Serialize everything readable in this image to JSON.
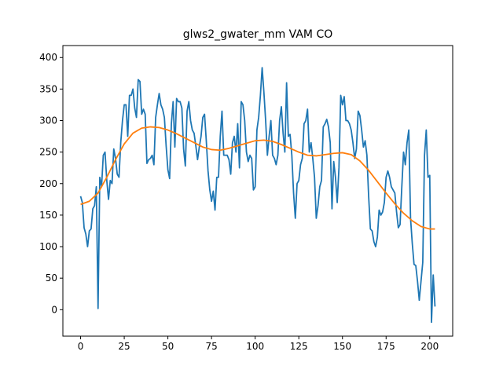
{
  "chart_data": {
    "type": "line",
    "title": "glws2_gwater_mm VAM CO",
    "xlim": [
      -10.15,
      213.15
    ],
    "ylim": [
      -42,
      419
    ],
    "xticks": [
      0,
      25,
      50,
      75,
      100,
      125,
      150,
      175,
      200
    ],
    "yticks": [
      0,
      50,
      100,
      150,
      200,
      250,
      300,
      350,
      400
    ],
    "grid": false,
    "series": [
      {
        "color": "#1f77b4",
        "x": [
          0,
          1,
          2,
          3,
          4,
          5,
          6,
          7,
          8,
          9,
          10,
          11,
          12,
          13,
          14,
          15,
          16,
          17,
          18,
          19,
          20,
          21,
          22,
          23,
          24,
          25,
          26,
          27,
          28,
          29,
          30,
          31,
          32,
          33,
          34,
          35,
          36,
          37,
          38,
          39,
          40,
          41,
          42,
          43,
          44,
          45,
          46,
          47,
          48,
          49,
          50,
          51,
          52,
          53,
          54,
          55,
          56,
          57,
          58,
          59,
          60,
          61,
          62,
          63,
          64,
          65,
          66,
          67,
          68,
          69,
          70,
          71,
          72,
          73,
          74,
          75,
          76,
          77,
          78,
          79,
          80,
          81,
          82,
          83,
          84,
          85,
          86,
          87,
          88,
          89,
          90,
          91,
          92,
          93,
          94,
          95,
          96,
          97,
          98,
          99,
          100,
          101,
          102,
          103,
          104,
          105,
          106,
          107,
          108,
          109,
          110,
          111,
          112,
          113,
          114,
          115,
          116,
          117,
          118,
          119,
          120,
          121,
          122,
          123,
          124,
          125,
          126,
          127,
          128,
          129,
          130,
          131,
          132,
          133,
          134,
          135,
          136,
          137,
          138,
          139,
          140,
          141,
          142,
          143,
          144,
          145,
          146,
          147,
          148,
          149,
          150,
          151,
          152,
          153,
          154,
          155,
          156,
          157,
          158,
          159,
          160,
          161,
          162,
          163,
          164,
          165,
          166,
          167,
          168,
          169,
          170,
          171,
          172,
          173,
          174,
          175,
          176,
          177,
          178,
          179,
          180,
          181,
          182,
          183,
          184,
          185,
          186,
          187,
          188,
          189,
          190,
          191,
          192,
          193,
          194,
          195,
          196,
          197,
          198,
          199,
          200,
          201,
          202,
          203
        ],
        "values": [
          180,
          170,
          130,
          120,
          100,
          125,
          128,
          160,
          165,
          195,
          2,
          210,
          195,
          245,
          250,
          205,
          175,
          205,
          200,
          255,
          240,
          215,
          210,
          265,
          300,
          325,
          325,
          275,
          340,
          340,
          350,
          320,
          305,
          365,
          362,
          310,
          318,
          310,
          232,
          238,
          240,
          245,
          230,
          305,
          325,
          343,
          325,
          318,
          305,
          260,
          222,
          208,
          295,
          330,
          258,
          335,
          330,
          330,
          320,
          255,
          228,
          315,
          330,
          300,
          285,
          280,
          260,
          238,
          258,
          275,
          305,
          310,
          268,
          220,
          190,
          172,
          188,
          158,
          210,
          210,
          275,
          315,
          245,
          245,
          245,
          238,
          215,
          265,
          275,
          250,
          295,
          225,
          330,
          325,
          300,
          250,
          235,
          245,
          240,
          190,
          195,
          285,
          305,
          340,
          384,
          345,
          300,
          245,
          275,
          300,
          245,
          240,
          230,
          245,
          300,
          322,
          280,
          250,
          360,
          275,
          278,
          245,
          185,
          145,
          200,
          205,
          230,
          240,
          295,
          300,
          318,
          250,
          265,
          240,
          210,
          145,
          165,
          195,
          205,
          290,
          295,
          302,
          290,
          265,
          160,
          235,
          210,
          170,
          225,
          340,
          325,
          338,
          300,
          300,
          295,
          285,
          265,
          240,
          255,
          315,
          308,
          285,
          258,
          268,
          245,
          180,
          128,
          125,
          108,
          100,
          115,
          158,
          150,
          155,
          170,
          210,
          220,
          210,
          195,
          190,
          185,
          155,
          130,
          135,
          195,
          250,
          230,
          265,
          285,
          145,
          105,
          72,
          70,
          45,
          15,
          45,
          75,
          245,
          285,
          210,
          213,
          -20,
          55,
          5
        ]
      },
      {
        "color": "#ff7f0e",
        "x": [
          0,
          5,
          10,
          15,
          20,
          25,
          30,
          35,
          40,
          45,
          50,
          55,
          60,
          65,
          70,
          75,
          80,
          85,
          90,
          95,
          100,
          105,
          110,
          115,
          120,
          125,
          130,
          135,
          140,
          145,
          150,
          155,
          160,
          165,
          170,
          175,
          180,
          185,
          190,
          195,
          200,
          203
        ],
        "values": [
          167,
          172,
          185,
          210,
          238,
          263,
          280,
          288,
          290,
          289,
          285,
          279,
          272,
          265,
          258,
          254,
          253,
          256,
          260,
          264,
          268,
          269,
          267,
          262,
          256,
          250,
          245,
          244,
          246,
          248,
          249,
          246,
          236,
          221,
          203,
          185,
          168,
          153,
          141,
          132,
          128,
          128
        ]
      }
    ]
  }
}
